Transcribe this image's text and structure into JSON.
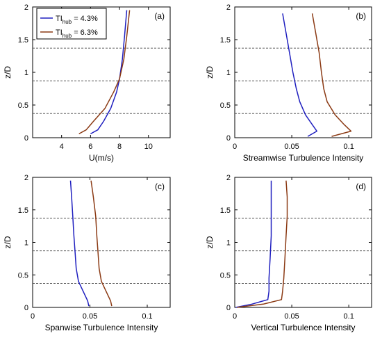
{
  "colors": {
    "tihub43": "#1f1fbf",
    "tihub63": "#8b3a14",
    "axis": "#000000",
    "dash": "#444444"
  },
  "legend": {
    "entries": [
      {
        "prefix": "TI",
        "sub": "hub",
        "suffix": " = 4.3%",
        "color_key": "tihub43"
      },
      {
        "prefix": "TI",
        "sub": "hub",
        "suffix": " = 6.3%",
        "color_key": "tihub63"
      }
    ]
  },
  "chart_data": [
    {
      "type": "line",
      "panel_label": "(a)",
      "xlabel": "U(m/s)",
      "ylabel": "z/D",
      "xlim": [
        2,
        11.5
      ],
      "ylim": [
        0,
        2
      ],
      "xticks": [
        4,
        6,
        8,
        10
      ],
      "xticklabels": [
        "4",
        "6",
        "8",
        "10"
      ],
      "yticks": [
        0,
        0.5,
        1,
        1.5,
        2
      ],
      "yticklabels": [
        "0",
        "0.5",
        "1",
        "1.5",
        "2"
      ],
      "hlines": [
        0.37,
        0.87,
        1.37
      ],
      "show_legend": true,
      "series": [
        {
          "color_key": "tihub43",
          "x": [
            6.0,
            6.5,
            6.9,
            7.4,
            7.8,
            8.0,
            8.2,
            8.35,
            8.5
          ],
          "y": [
            0.06,
            0.12,
            0.25,
            0.45,
            0.7,
            0.9,
            1.2,
            1.55,
            1.95
          ]
        },
        {
          "color_key": "tihub63",
          "x": [
            5.2,
            5.7,
            6.2,
            7.0,
            7.6,
            8.0,
            8.3,
            8.5,
            8.7
          ],
          "y": [
            0.06,
            0.12,
            0.25,
            0.45,
            0.7,
            0.9,
            1.2,
            1.55,
            1.95
          ]
        }
      ]
    },
    {
      "type": "line",
      "panel_label": "(b)",
      "xlabel": "Streamwise Turbulence Intensity",
      "ylabel": "z/D",
      "xlim": [
        0,
        0.12
      ],
      "ylim": [
        0,
        2
      ],
      "xticks": [
        0,
        0.05,
        0.1
      ],
      "xticklabels": [
        "0",
        "0.05",
        "0.1"
      ],
      "yticks": [
        0,
        0.5,
        1,
        1.5,
        2
      ],
      "yticklabels": [
        "0",
        "0.5",
        "1",
        "1.5",
        "2"
      ],
      "hlines": [
        0.37,
        0.87,
        1.37
      ],
      "show_legend": false,
      "series": [
        {
          "color_key": "tihub43",
          "x": [
            0.064,
            0.072,
            0.068,
            0.062,
            0.057,
            0.054,
            0.051,
            0.048,
            0.045,
            0.042
          ],
          "y": [
            0.02,
            0.1,
            0.2,
            0.35,
            0.55,
            0.75,
            1.0,
            1.3,
            1.6,
            1.9
          ]
        },
        {
          "color_key": "tihub63",
          "x": [
            0.085,
            0.102,
            0.096,
            0.088,
            0.081,
            0.078,
            0.076,
            0.074,
            0.071,
            0.068
          ],
          "y": [
            0.02,
            0.1,
            0.2,
            0.35,
            0.55,
            0.75,
            1.0,
            1.3,
            1.6,
            1.9
          ]
        }
      ]
    },
    {
      "type": "line",
      "panel_label": "(c)",
      "xlabel": "Spanwise Turbulence Intensity",
      "ylabel": "z/D",
      "xlim": [
        0,
        0.12
      ],
      "ylim": [
        0,
        2
      ],
      "xticks": [
        0,
        0.05,
        0.1
      ],
      "xticklabels": [
        "0",
        "0.05",
        "0.1"
      ],
      "yticks": [
        0,
        0.5,
        1,
        1.5,
        2
      ],
      "yticklabels": [
        "0",
        "0.5",
        "1",
        "1.5",
        "2"
      ],
      "hlines": [
        0.37,
        0.87,
        1.37
      ],
      "show_legend": false,
      "series": [
        {
          "color_key": "tihub43",
          "x": [
            0.049,
            0.048,
            0.044,
            0.04,
            0.038,
            0.037,
            0.036,
            0.035,
            0.034,
            0.033
          ],
          "y": [
            0.02,
            0.1,
            0.25,
            0.4,
            0.6,
            0.85,
            1.1,
            1.4,
            1.7,
            1.95
          ]
        },
        {
          "color_key": "tihub63",
          "x": [
            0.069,
            0.068,
            0.064,
            0.06,
            0.058,
            0.057,
            0.056,
            0.055,
            0.053,
            0.051
          ],
          "y": [
            0.02,
            0.1,
            0.25,
            0.4,
            0.6,
            0.85,
            1.1,
            1.4,
            1.7,
            1.95
          ]
        }
      ]
    },
    {
      "type": "line",
      "panel_label": "(d)",
      "xlabel": "Vertical Turbulence Intensity",
      "ylabel": "z/D",
      "xlim": [
        0,
        0.12
      ],
      "ylim": [
        0,
        2
      ],
      "xticks": [
        0,
        0.05,
        0.1
      ],
      "xticklabels": [
        "0",
        "0.05",
        "0.1"
      ],
      "yticks": [
        0,
        0.5,
        1,
        1.5,
        2
      ],
      "yticklabels": [
        "0",
        "0.5",
        "1",
        "1.5",
        "2"
      ],
      "hlines": [
        0.37,
        0.87,
        1.37
      ],
      "show_legend": false,
      "series": [
        {
          "color_key": "tihub43",
          "x": [
            0.001,
            0.015,
            0.029,
            0.03,
            0.03,
            0.031,
            0.032,
            0.032,
            0.032,
            0.032
          ],
          "y": [
            0.0,
            0.05,
            0.12,
            0.25,
            0.45,
            0.75,
            1.1,
            1.4,
            1.7,
            1.95
          ]
        },
        {
          "color_key": "tihub63",
          "x": [
            0.002,
            0.025,
            0.041,
            0.042,
            0.043,
            0.044,
            0.045,
            0.046,
            0.046,
            0.045
          ],
          "y": [
            0.0,
            0.05,
            0.12,
            0.25,
            0.45,
            0.75,
            1.1,
            1.4,
            1.7,
            1.95
          ]
        }
      ]
    }
  ]
}
